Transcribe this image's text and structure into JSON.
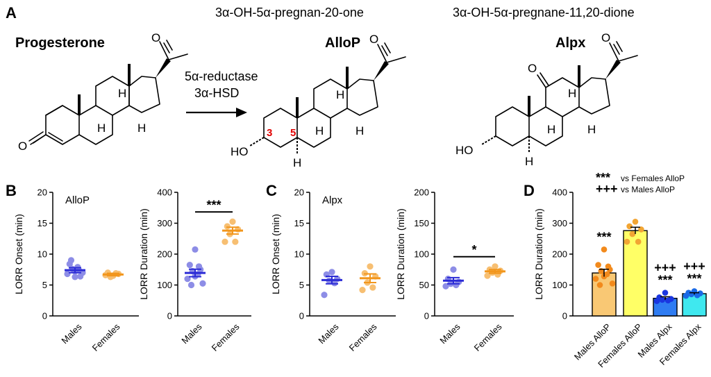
{
  "panel_letters": {
    "a": "A",
    "b": "B",
    "c": "C",
    "d": "D"
  },
  "panel_a": {
    "progesterone_label": "Progesterone",
    "allop_title": "3α-OH-5α-pregnan-20-one",
    "allop_label": "AlloP",
    "alpx_title": "3α-OH-5α-pregnane-11,20-dione",
    "alpx_label": "Alpx",
    "enzyme1": "5α-reductase",
    "enzyme2": "3α-HSD",
    "atom_O": "O",
    "atom_HO": "HO",
    "atom_H": "H",
    "position_3": "3",
    "position_5": "5"
  },
  "chart_data": [
    {
      "id": "B-onset",
      "type": "scatter",
      "title": "AlloP",
      "ylabel": "LORR Onset (min)",
      "ylim": [
        0,
        20
      ],
      "yticks": [
        0,
        5,
        10,
        15,
        20
      ],
      "categories": [
        "Males",
        "Females"
      ],
      "colors": [
        "#2b2bd6",
        "#f2961c"
      ],
      "point_colors": [
        "#8d8de6",
        "#f7bf72"
      ],
      "mean": [
        7.4,
        6.7
      ],
      "sem": [
        0.4,
        0.2
      ],
      "points": [
        [
          7.2,
          8.4,
          6.4,
          7.6,
          7.9,
          6.8,
          7.0,
          9.0,
          7.4,
          6.3
        ],
        [
          6.5,
          7.0,
          6.8,
          6.3,
          6.9,
          6.6
        ]
      ],
      "significance": ""
    },
    {
      "id": "B-duration",
      "type": "scatter",
      "title": "",
      "ylabel": "LORR Duration (min)",
      "ylim": [
        0,
        400
      ],
      "yticks": [
        0,
        100,
        200,
        300,
        400
      ],
      "categories": [
        "Males",
        "Females"
      ],
      "colors": [
        "#2b2bd6",
        "#f2961c"
      ],
      "point_colors": [
        "#8d8de6",
        "#f7bf72"
      ],
      "mean": [
        139,
        276
      ],
      "sem": [
        12,
        11
      ],
      "points": [
        [
          215,
          165,
          150,
          145,
          135,
          120,
          105,
          100,
          160,
          128
        ],
        [
          305,
          290,
          280,
          265,
          240,
          240
        ]
      ],
      "significance": "***"
    },
    {
      "id": "C-onset",
      "type": "scatter",
      "title": "Alpx",
      "ylabel": "LORR Onset (min)",
      "ylim": [
        0,
        20
      ],
      "yticks": [
        0,
        5,
        10,
        15,
        20
      ],
      "categories": [
        "Males",
        "Females"
      ],
      "colors": [
        "#2b2bd6",
        "#f2961c"
      ],
      "point_colors": [
        "#8d8de6",
        "#f7bf72"
      ],
      "mean": [
        5.8,
        6.1
      ],
      "sem": [
        0.6,
        0.7
      ],
      "points": [
        [
          7.1,
          6.7,
          6.0,
          5.7,
          5.3,
          3.4
        ],
        [
          8.0,
          6.9,
          6.4,
          5.4,
          4.6,
          4.2
        ]
      ],
      "significance": ""
    },
    {
      "id": "C-duration",
      "type": "scatter",
      "title": "",
      "ylabel": "LORR Duration (min)",
      "ylim": [
        0,
        200
      ],
      "yticks": [
        0,
        50,
        100,
        150,
        200
      ],
      "categories": [
        "Males",
        "Females"
      ],
      "colors": [
        "#2b2bd6",
        "#f2961c"
      ],
      "point_colors": [
        "#8d8de6",
        "#f7bf72"
      ],
      "mean": [
        57,
        72
      ],
      "sem": [
        5,
        3
      ],
      "points": [
        [
          75,
          60,
          55,
          52,
          50,
          48
        ],
        [
          80,
          75,
          73,
          70,
          67,
          65
        ]
      ],
      "significance": "*"
    },
    {
      "id": "D",
      "type": "bar",
      "ylabel": "LORR Duration (min)",
      "ylim": [
        0,
        400
      ],
      "yticks": [
        0,
        100,
        200,
        300,
        400
      ],
      "categories": [
        "Males AlloP",
        "Females AlloP",
        "Males Alpx",
        "Females Alpx"
      ],
      "values": [
        139,
        276,
        57,
        72
      ],
      "sem": [
        12,
        11,
        5,
        3
      ],
      "bar_colors": [
        "#f9c874",
        "#ffff66",
        "#2f7cf2",
        "#3fe8ef"
      ],
      "point_colors": [
        "#f28a1c",
        "#f2a533",
        "#1a36e0",
        "#1a6ae6"
      ],
      "points": [
        [
          215,
          165,
          150,
          145,
          135,
          120,
          105,
          100,
          160,
          128
        ],
        [
          305,
          290,
          280,
          265,
          240,
          240
        ],
        [
          75,
          60,
          55,
          52,
          50,
          48
        ],
        [
          80,
          75,
          73,
          70,
          67,
          65
        ]
      ],
      "sig_vs_females": [
        "***",
        "",
        "***",
        "***"
      ],
      "sig_vs_males": [
        "",
        "",
        "+++",
        "+++"
      ],
      "legend": [
        {
          "symbol": "***",
          "text": "vs Females AlloP"
        },
        {
          "symbol": "+++",
          "text": "vs Males AlloP"
        }
      ]
    }
  ]
}
